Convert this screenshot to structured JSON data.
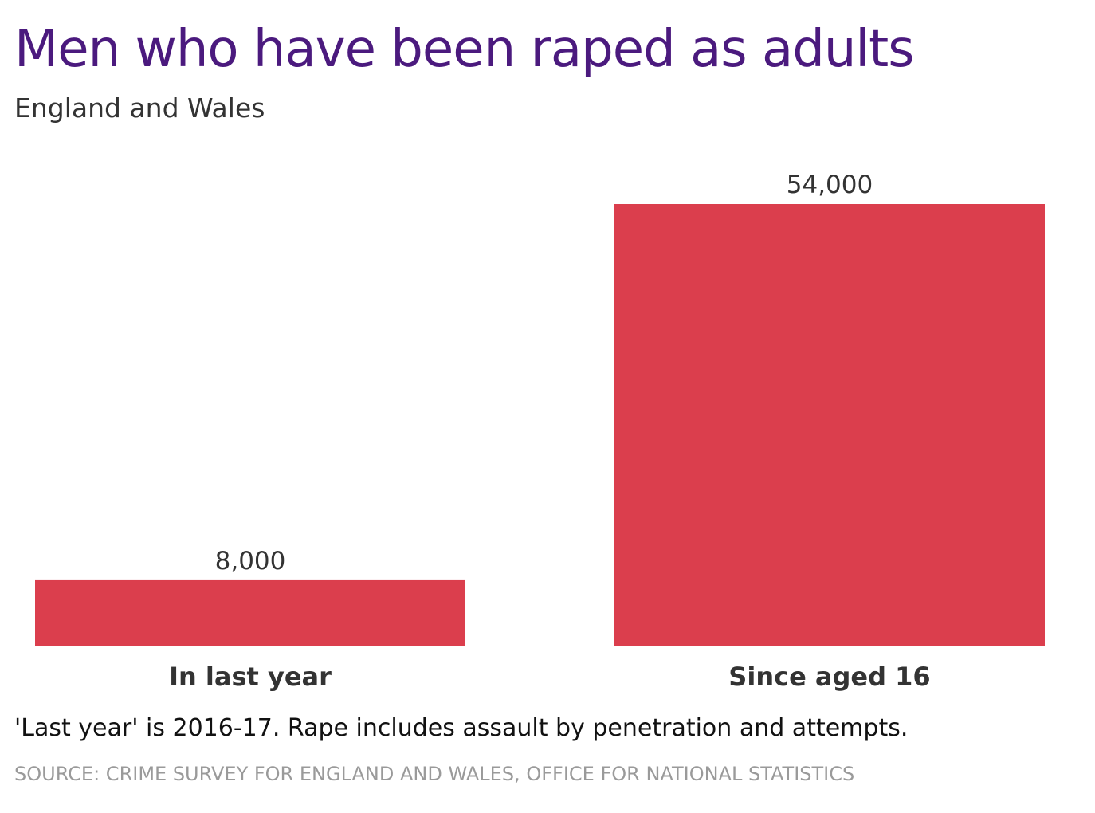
{
  "header": {
    "title": "Men who have been raped as adults",
    "subtitle": "England and Wales"
  },
  "footer": {
    "note": "'Last year' is 2016-17. Rape includes assault by penetration and attempts.",
    "source": "SOURCE: CRIME SURVEY FOR ENGLAND AND WALES, OFFICE FOR NATIONAL STATISTICS"
  },
  "colors": {
    "title": "#4b1a7e",
    "bar": "#db3e4d",
    "value_label": "#333333",
    "category_label": "#333333",
    "source": "#9a9a9a"
  },
  "chart_data": {
    "type": "bar",
    "title": "Men who have been raped as adults",
    "subtitle": "England and Wales",
    "categories": [
      "In last year",
      "Since aged 16"
    ],
    "values": [
      8000,
      54000
    ],
    "value_labels": [
      "8,000",
      "54,000"
    ],
    "xlabel": "",
    "ylabel": "",
    "ylim": [
      0,
      54000
    ],
    "grid": false,
    "legend": "none"
  }
}
